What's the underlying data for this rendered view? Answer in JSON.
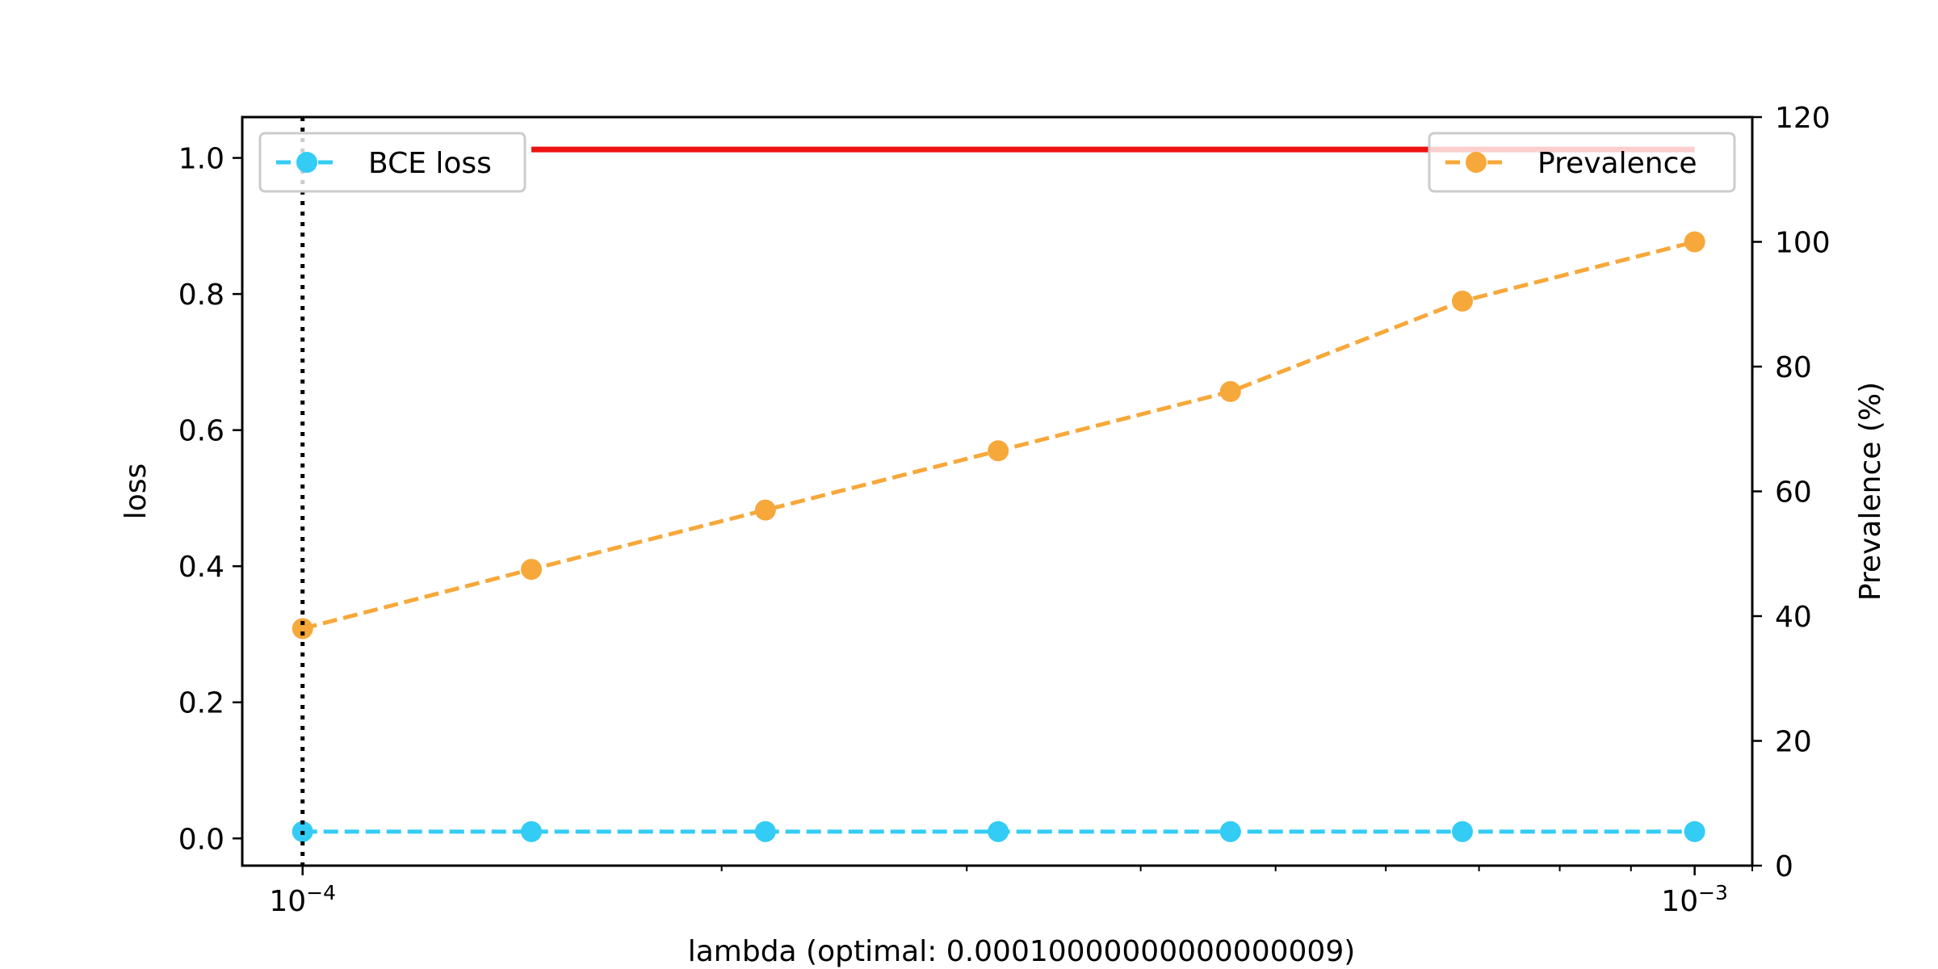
{
  "chart_data": {
    "type": "line",
    "title": "",
    "xlabel": "lambda (optimal: 0.00010000000000000009)",
    "xscale": "log",
    "xlim": [
      9.05e-05,
      0.0011
    ],
    "x": [
      0.0001,
      0.000146,
      0.000215,
      0.000316,
      0.000464,
      0.000681,
      0.001
    ],
    "x_ticks": [
      {
        "value": 0.0001,
        "base": "10",
        "exp": "−4"
      },
      {
        "value": 0.001,
        "base": "10",
        "exp": "−3"
      }
    ],
    "optimal_x": 0.0001,
    "left_axis": {
      "label": "loss",
      "ylim": [
        -0.04,
        1.06
      ],
      "ticks": [
        "0.0",
        "0.2",
        "0.4",
        "0.6",
        "0.8",
        "1.0"
      ],
      "tick_values": [
        0.0,
        0.2,
        0.4,
        0.6,
        0.8,
        1.0
      ]
    },
    "right_axis": {
      "label": "Prevalence (%)",
      "ylim": [
        0,
        120
      ],
      "ticks": [
        "0",
        "20",
        "40",
        "60",
        "80",
        "100",
        "120"
      ],
      "tick_values": [
        0,
        20,
        40,
        60,
        80,
        100,
        120
      ]
    },
    "series": [
      {
        "name": "BCE loss",
        "axis": "left",
        "color": "#33ccf5",
        "style": "dashed",
        "marker": "circle",
        "values": [
          0.01,
          0.01,
          0.01,
          0.01,
          0.01,
          0.01,
          0.01
        ]
      },
      {
        "name": "Prevalence",
        "axis": "right",
        "color": "#f7a83a",
        "style": "dashed",
        "marker": "circle",
        "values": [
          38,
          47.5,
          57,
          66.5,
          76,
          90.5,
          100
        ]
      }
    ],
    "reference_line": {
      "axis": "right",
      "value": 114.8,
      "x_from": 0.000146,
      "x_to": 0.001,
      "color": "#ee1111"
    },
    "legends": [
      {
        "position": "upper-left",
        "entries": [
          "BCE loss"
        ]
      },
      {
        "position": "upper-right",
        "entries": [
          "Prevalence"
        ]
      }
    ],
    "grid": false
  }
}
